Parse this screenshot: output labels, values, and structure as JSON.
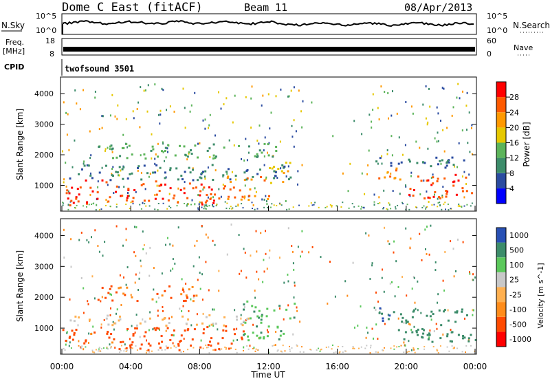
{
  "header": {
    "title": "Dome C East (fitACF)",
    "beam": "Beam 11",
    "date": "08/Apr/2013"
  },
  "param_panels": {
    "nsky_label": "N.Sky",
    "nsearch_label": "N.Search",
    "nsky_ticks": [
      "10^5",
      "10^0"
    ],
    "nsearch_ticks": [
      "10^5",
      "10^0"
    ],
    "freq_label_1": "Freq.",
    "freq_label_2": "[MHz]",
    "freq_ticks": [
      "18",
      "8"
    ],
    "nave_label": "Nave",
    "nave_ticks": [
      "60",
      "0"
    ],
    "cpid_label": "CPID",
    "cpid_value": "twofsound 3501"
  },
  "colors": {
    "power_scale": [
      "#0000ff",
      "#2a4ba0",
      "#3c8c6a",
      "#5cb45a",
      "#e6c800",
      "#ff9900",
      "#ff5a00",
      "#ff0000"
    ],
    "velocity_scale": [
      "#ff0000",
      "#ff4a00",
      "#ff8c1a",
      "#ffb050",
      "#c8c8c8",
      "#5bc85b",
      "#3c8c6a",
      "#2850b4"
    ]
  },
  "chart_data": [
    {
      "type": "heatmap",
      "name": "power",
      "title": "",
      "xlabel": "",
      "ylabel": "Slant Range [km]",
      "xlim": [
        0,
        24
      ],
      "ylim": [
        200,
        4500
      ],
      "x_ticks": [
        "00:00",
        "04:00",
        "08:00",
        "12:00",
        "16:00",
        "20:00",
        "00:00"
      ],
      "y_ticks": [
        1000,
        2000,
        3000,
        4000
      ],
      "colorbar": {
        "label": "Power [dB]",
        "range": [
          0,
          32
        ],
        "ticks": [
          4,
          8,
          12,
          16,
          20,
          24,
          28
        ]
      },
      "bands": [
        {
          "t0": 0.0,
          "t1": 2.0,
          "r0": 350,
          "r1": 1200,
          "power": 30
        },
        {
          "t0": 2.0,
          "t1": 6.5,
          "r0": 500,
          "r1": 1200,
          "power": 30
        },
        {
          "t0": 6.5,
          "t1": 9.5,
          "r0": 300,
          "r1": 1100,
          "power": 30
        },
        {
          "t0": 9.5,
          "t1": 12.0,
          "r0": 550,
          "r1": 1350,
          "power": 28
        },
        {
          "t0": 12.0,
          "t1": 13.5,
          "r0": 1000,
          "r1": 1800,
          "power": 22
        },
        {
          "t0": 0.0,
          "t1": 13.5,
          "r0": 1200,
          "r1": 1700,
          "power": 12
        },
        {
          "t0": 2.0,
          "t1": 12.5,
          "r0": 1900,
          "r1": 2400,
          "power": 16
        },
        {
          "t0": 18.0,
          "t1": 20.0,
          "r0": 1200,
          "r1": 1600,
          "power": 26
        },
        {
          "t0": 20.0,
          "t1": 24.0,
          "r0": 600,
          "r1": 1400,
          "power": 30
        },
        {
          "t0": 18.0,
          "t1": 24.0,
          "r0": 1600,
          "r1": 2000,
          "power": 10
        }
      ]
    },
    {
      "type": "heatmap",
      "name": "velocity",
      "title": "",
      "xlabel": "Time UT",
      "ylabel": "Slant Range [km]",
      "xlim": [
        0,
        24
      ],
      "ylim": [
        200,
        4500
      ],
      "x_ticks": [
        "00:00",
        "04:00",
        "08:00",
        "12:00",
        "16:00",
        "20:00",
        "00:00"
      ],
      "y_ticks": [
        1000,
        2000,
        3000,
        4000
      ],
      "colorbar": {
        "label": "Velocity [m s^-1]",
        "ticks": [
          "1000",
          "500",
          "100",
          "25",
          "-25",
          "-100",
          "-500",
          "-1000"
        ]
      },
      "bands": [
        {
          "t0": 0.0,
          "t1": 3.0,
          "r0": 500,
          "r1": 1100,
          "velocity": -150
        },
        {
          "t0": 3.0,
          "t1": 10.5,
          "r0": 300,
          "r1": 1100,
          "velocity": -300
        },
        {
          "t0": 0.0,
          "t1": 11.0,
          "r0": 1100,
          "r1": 1450,
          "velocity": 0
        },
        {
          "t0": 10.5,
          "t1": 13.5,
          "r0": 600,
          "r1": 1900,
          "velocity": 80
        },
        {
          "t0": 2.0,
          "t1": 8.0,
          "r0": 1900,
          "r1": 2400,
          "velocity": -120
        },
        {
          "t0": 18.0,
          "t1": 19.5,
          "r0": 1200,
          "r1": 1700,
          "velocity": 700
        },
        {
          "t0": 19.5,
          "t1": 24.0,
          "r0": 550,
          "r1": 1700,
          "velocity": 200
        }
      ]
    }
  ]
}
